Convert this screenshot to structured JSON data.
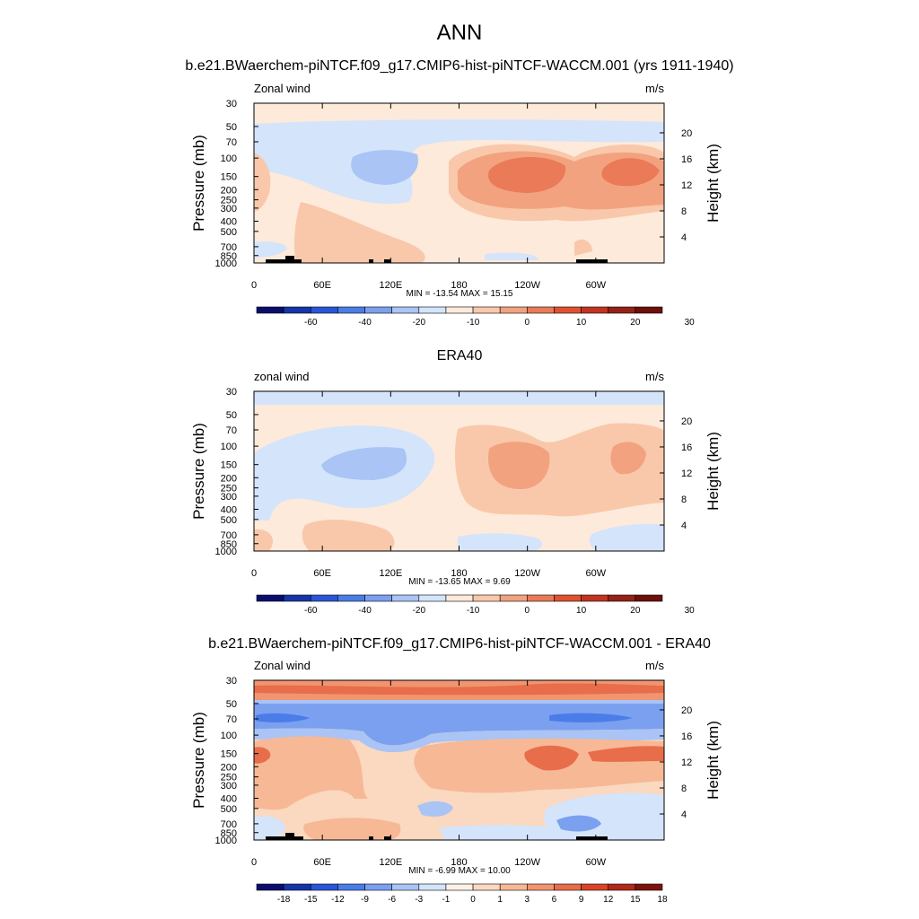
{
  "figure": {
    "title": "ANN"
  },
  "colors": {
    "model_palette": [
      "#0b0d6e",
      "#1536a8",
      "#2a55d8",
      "#4a7de8",
      "#7aa0ef",
      "#a9c4f5",
      "#d4e4fb",
      "#fdeadb",
      "#f9c8aa",
      "#f2a27f",
      "#ea7a58",
      "#e1512f",
      "#c4331f",
      "#962115",
      "#6e0f0a"
    ],
    "diff_palette": [
      "#0b0d6e",
      "#1536a8",
      "#2a55d8",
      "#4a7de8",
      "#7aa0ef",
      "#a9c4f5",
      "#d4e4fb",
      "#fdf2e6",
      "#fbd8c0",
      "#f7b896",
      "#f0956f",
      "#e86d4a",
      "#d94427",
      "#b12a19",
      "#7d140c"
    ]
  },
  "chart_data": [
    {
      "type": "heatmap",
      "title": "b.e21.BWaerchem-piNTCF.f09_g17.CMIP6-hist-piNTCF-WACCM.001 (yrs 1911-1940)",
      "left_label": "Zonal wind",
      "units": "m/s",
      "ylabel": "Pressure (mb)",
      "y2label": "Height (km)",
      "y_ticks": [
        "30",
        "50",
        "70",
        "100",
        "150",
        "200",
        "250",
        "300",
        "400",
        "500",
        "700",
        "850",
        "1000"
      ],
      "y2_ticks": [
        "20",
        "16",
        "12",
        "8",
        "4"
      ],
      "x_ticks": [
        "0",
        "60E",
        "120E",
        "180",
        "120W",
        "60W"
      ],
      "min": -13.54,
      "max": 15.15,
      "stats": "MIN = -13.54  MAX =  15.15",
      "levels": [
        "-60",
        "-40",
        "-20",
        "-10",
        "0",
        "10",
        "20",
        "30"
      ]
    },
    {
      "type": "heatmap",
      "title": "ERA40",
      "left_label": "zonal wind",
      "units": "m/s",
      "ylabel": "Pressure (mb)",
      "y2label": "Height (km)",
      "y_ticks": [
        "30",
        "50",
        "70",
        "100",
        "150",
        "200",
        "250",
        "300",
        "400",
        "500",
        "700",
        "850",
        "1000"
      ],
      "y2_ticks": [
        "20",
        "16",
        "12",
        "8",
        "4"
      ],
      "x_ticks": [
        "0",
        "60E",
        "120E",
        "180",
        "120W",
        "60W"
      ],
      "min": -13.65,
      "max": 9.69,
      "stats": "MIN = -13.65  MAX =   9.69",
      "levels": [
        "-60",
        "-40",
        "-20",
        "-10",
        "0",
        "10",
        "20",
        "30"
      ]
    },
    {
      "type": "heatmap",
      "title": "b.e21.BWaerchem-piNTCF.f09_g17.CMIP6-hist-piNTCF-WACCM.001 - ERA40",
      "left_label": "Zonal wind",
      "units": "m/s",
      "ylabel": "Pressure (mb)",
      "y2label": "Height (km)",
      "y_ticks": [
        "30",
        "50",
        "70",
        "100",
        "150",
        "200",
        "250",
        "300",
        "400",
        "500",
        "700",
        "850",
        "1000"
      ],
      "y2_ticks": [
        "20",
        "16",
        "12",
        "8",
        "4"
      ],
      "x_ticks": [
        "0",
        "60E",
        "120E",
        "180",
        "120W",
        "60W"
      ],
      "min": -6.99,
      "max": 10.0,
      "stats": "MIN =  -6.99  MAX =  10.00",
      "levels": [
        "-18",
        "-15",
        "-12",
        "-9",
        "-6",
        "-3",
        "-1",
        "0",
        "1",
        "3",
        "6",
        "9",
        "12",
        "15",
        "18"
      ]
    }
  ]
}
